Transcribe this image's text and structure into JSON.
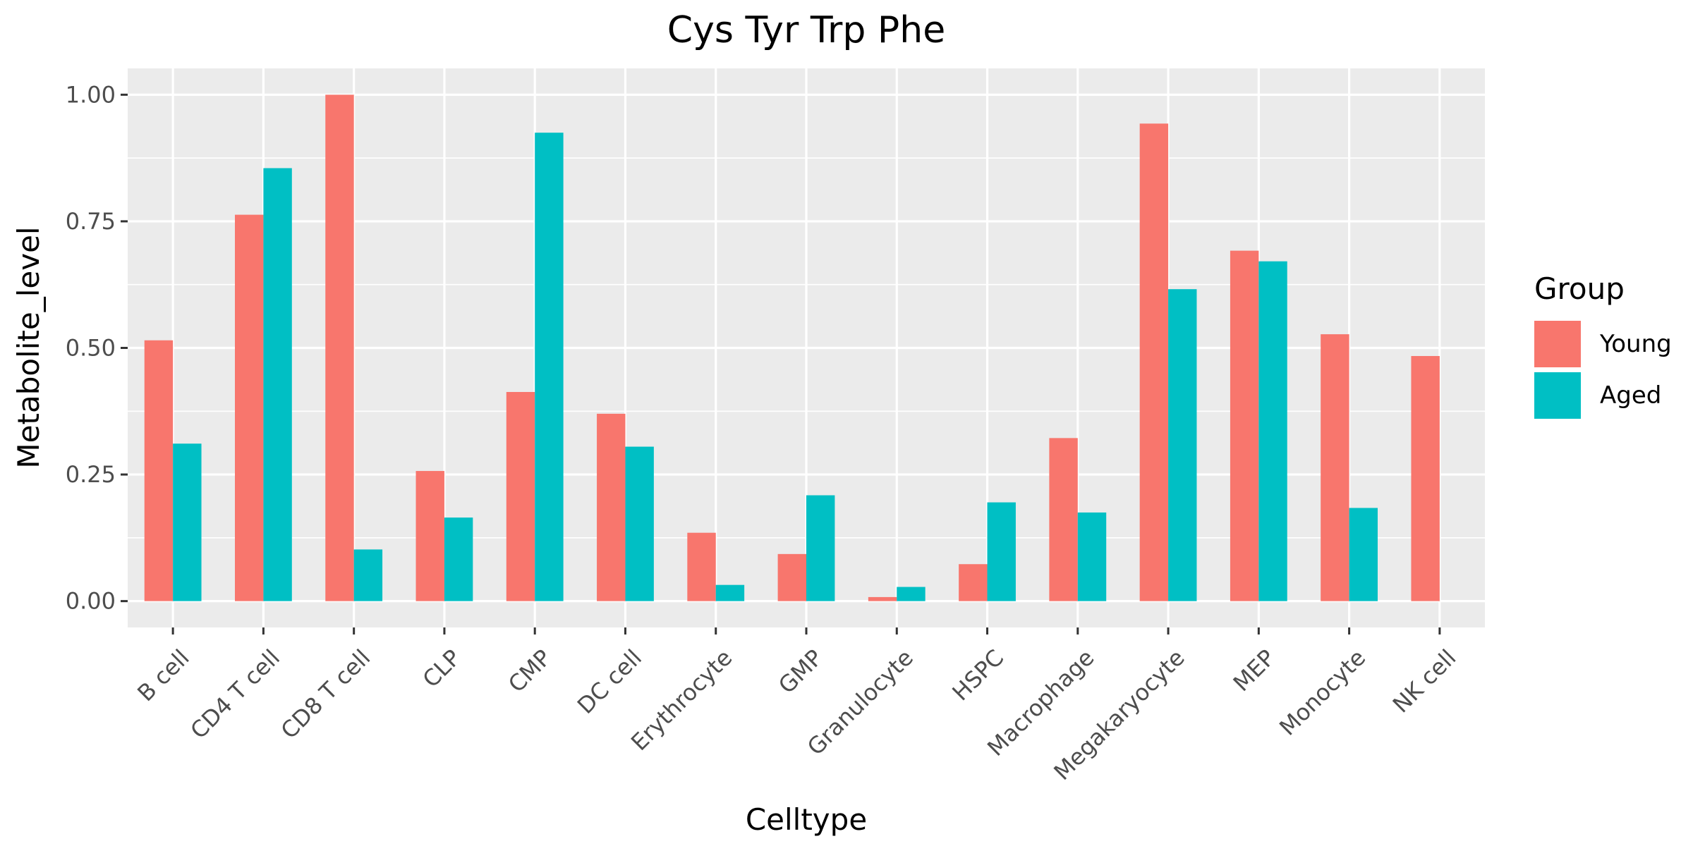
{
  "chart_data": {
    "type": "bar",
    "title": "Cys Tyr Trp Phe",
    "xlabel": "Celltype",
    "ylabel": "Metabolite_level",
    "categories": [
      "B cell",
      "CD4 T cell",
      "CD8 T cell",
      "CLP",
      "CMP",
      "DC cell",
      "Erythrocyte",
      "GMP",
      "Granulocyte",
      "HSPC",
      "Macrophage",
      "Megakaryocyte",
      "MEP",
      "Monocyte",
      "NK cell"
    ],
    "series": [
      {
        "name": "Young",
        "color": "#F8766D",
        "values": [
          0.515,
          0.763,
          1.0,
          0.257,
          0.413,
          0.37,
          0.135,
          0.093,
          0.008,
          0.073,
          0.322,
          0.943,
          0.692,
          0.527,
          0.484
        ]
      },
      {
        "name": "Aged",
        "color": "#00BFC4",
        "values": [
          0.311,
          0.855,
          0.102,
          0.165,
          0.925,
          0.305,
          0.032,
          0.209,
          0.028,
          0.195,
          0.175,
          0.616,
          0.671,
          0.184,
          null
        ]
      }
    ],
    "ylim": [
      -0.052,
      1.052
    ],
    "yticks": [
      0.0,
      0.25,
      0.5,
      0.75,
      1.0
    ],
    "ytick_labels": [
      "0.00",
      "0.25",
      "0.50",
      "0.75",
      "1.00"
    ],
    "grid": true,
    "panel_background": "#EBEBEB",
    "legend": {
      "title": "Group",
      "position": "right"
    }
  }
}
